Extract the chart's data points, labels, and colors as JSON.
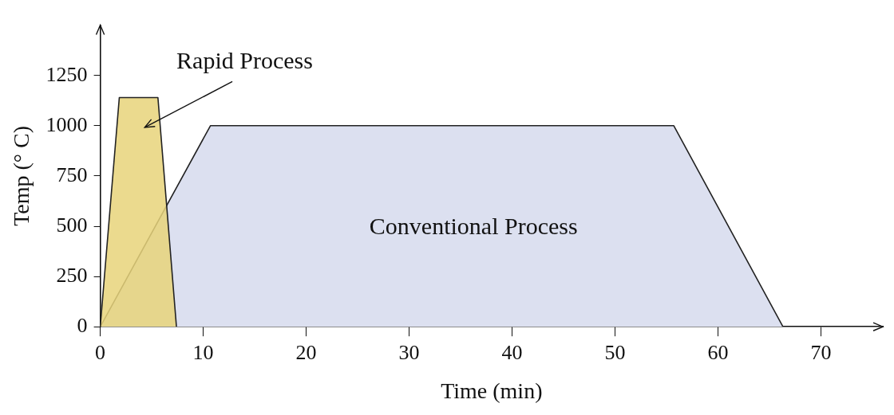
{
  "chart_data": {
    "type": "area",
    "xlabel": "Time (min)",
    "ylabel": "Temp (° C)",
    "xlim": [
      0,
      76
    ],
    "xticks": [
      0,
      10,
      20,
      30,
      40,
      50,
      60,
      70
    ],
    "ylim": [
      0,
      1500
    ],
    "yticks": [
      0,
      250,
      500,
      750,
      1000,
      1250
    ],
    "grid": false,
    "legend": false,
    "marker": "none",
    "series": [
      {
        "name": "Conventional Process",
        "color": "#dce0f0",
        "x": [
          0,
          10.7,
          55.7,
          66.3
        ],
        "values": [
          0,
          1000,
          1000,
          0
        ]
      },
      {
        "name": "Rapid Process",
        "color": "#e8d47a",
        "x": [
          0,
          1.85,
          5.6,
          7.4
        ],
        "values": [
          0,
          1140,
          1140,
          0
        ]
      }
    ]
  }
}
